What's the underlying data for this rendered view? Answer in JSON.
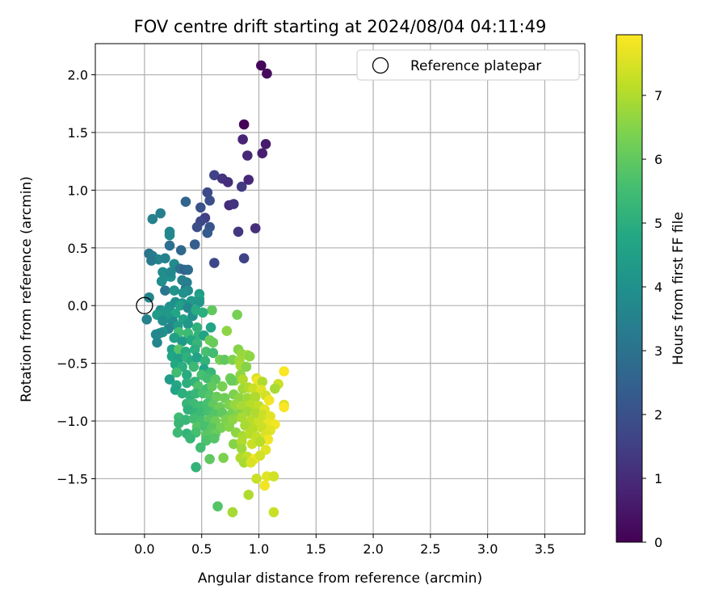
{
  "chart_data": {
    "type": "scatter",
    "title": "FOV centre drift starting at 2024/08/04 04:11:49",
    "xlabel": "Angular distance from reference (arcmin)",
    "ylabel": "Rotation from reference (arcmin)",
    "xlim": [
      -0.43,
      3.85
    ],
    "ylim": [
      -1.98,
      2.27
    ],
    "x_ticks": [
      0.0,
      0.5,
      1.0,
      1.5,
      2.0,
      2.5,
      3.0,
      3.5
    ],
    "x_tick_labels": [
      "0.0",
      "0.5",
      "1.0",
      "1.5",
      "2.0",
      "2.5",
      "3.0",
      "3.5"
    ],
    "y_ticks": [
      -1.5,
      -1.0,
      -0.5,
      0.0,
      0.5,
      1.0,
      1.5,
      2.0
    ],
    "y_tick_labels": [
      "−1.5",
      "−1.0",
      "−0.5",
      "0.0",
      "0.5",
      "1.0",
      "1.5",
      "2.0"
    ],
    "grid": true,
    "legend": {
      "position": "top-right",
      "entries": [
        "Reference platepar"
      ]
    },
    "reference_point": {
      "x": 0.0,
      "y": 0.0
    },
    "colorbar": {
      "label": "Hours from first FF file",
      "colormap": "viridis",
      "range": [
        0,
        7.95
      ],
      "ticks": [
        0,
        1,
        2,
        3,
        4,
        5,
        6,
        7
      ],
      "tick_labels": [
        "0",
        "1",
        "2",
        "3",
        "4",
        "5",
        "6",
        "7"
      ]
    },
    "points": [
      [
        1.02,
        2.08,
        0.15
      ],
      [
        1.07,
        2.01,
        0.25
      ],
      [
        0.87,
        1.57,
        0.05
      ],
      [
        1.06,
        1.4,
        0.6
      ],
      [
        0.86,
        1.44,
        0.8
      ],
      [
        1.03,
        1.32,
        0.7
      ],
      [
        0.9,
        1.3,
        0.9
      ],
      [
        0.61,
        1.13,
        1.6
      ],
      [
        0.68,
        1.1,
        1.2
      ],
      [
        0.73,
        1.07,
        1.1
      ],
      [
        0.91,
        1.09,
        0.9
      ],
      [
        0.85,
        1.03,
        1.4
      ],
      [
        0.55,
        0.98,
        1.8
      ],
      [
        0.57,
        0.91,
        1.9
      ],
      [
        0.36,
        0.9,
        2.6
      ],
      [
        0.49,
        0.85,
        2.0
      ],
      [
        0.74,
        0.87,
        1.0
      ],
      [
        0.78,
        0.88,
        1.2
      ],
      [
        0.53,
        0.76,
        1.5
      ],
      [
        0.49,
        0.73,
        1.7
      ],
      [
        0.57,
        0.68,
        2.1
      ],
      [
        0.46,
        0.68,
        1.9
      ],
      [
        0.55,
        0.63,
        2.3
      ],
      [
        0.82,
        0.64,
        1.3
      ],
      [
        0.97,
        0.67,
        1.1
      ],
      [
        0.14,
        0.8,
        3.4
      ],
      [
        0.07,
        0.75,
        3.5
      ],
      [
        0.22,
        0.64,
        3.6
      ],
      [
        0.22,
        0.61,
        3.7
      ],
      [
        0.22,
        0.52,
        2.9
      ],
      [
        0.32,
        0.48,
        2.7
      ],
      [
        0.44,
        0.53,
        2.4
      ],
      [
        0.87,
        0.41,
        1.6
      ],
      [
        0.61,
        0.37,
        1.7
      ],
      [
        0.04,
        0.45,
        3.0
      ],
      [
        0.07,
        0.43,
        3.3
      ],
      [
        0.12,
        0.4,
        3.6
      ],
      [
        0.18,
        0.41,
        3.5
      ],
      [
        0.06,
        0.39,
        3.2
      ],
      [
        0.26,
        0.36,
        3.8
      ],
      [
        0.31,
        0.32,
        3.0
      ],
      [
        0.35,
        0.31,
        2.5
      ],
      [
        0.38,
        0.31,
        2.8
      ],
      [
        0.16,
        0.29,
        3.8
      ],
      [
        0.18,
        0.25,
        3.9
      ],
      [
        0.23,
        0.25,
        4.0
      ],
      [
        0.23,
        0.29,
        3.7
      ],
      [
        0.15,
        0.21,
        3.9
      ],
      [
        0.33,
        0.22,
        3.5
      ],
      [
        0.37,
        0.2,
        3.4
      ],
      [
        0.36,
        0.15,
        3.2
      ],
      [
        0.38,
        0.13,
        3.8
      ],
      [
        0.18,
        0.13,
        3.1
      ],
      [
        0.26,
        0.13,
        4.1
      ],
      [
        0.34,
        0.11,
        4.0
      ],
      [
        0.04,
        0.07,
        3.6
      ],
      [
        0.48,
        0.1,
        4.4
      ],
      [
        0.48,
        0.06,
        4.6
      ],
      [
        0.41,
        0.04,
        4.3
      ],
      [
        0.48,
        0.03,
        4.2
      ],
      [
        0.33,
        0.02,
        4.1
      ],
      [
        0.27,
        0.03,
        3.9
      ],
      [
        0.31,
        0.0,
        4.5
      ],
      [
        0.22,
        -0.01,
        4.0
      ],
      [
        0.38,
        -0.02,
        3.7
      ],
      [
        0.14,
        -0.04,
        3.8
      ],
      [
        0.16,
        -0.05,
        4.1
      ],
      [
        0.19,
        -0.06,
        4.2
      ],
      [
        0.11,
        -0.08,
        4.4
      ],
      [
        0.27,
        -0.07,
        4.7
      ],
      [
        0.42,
        -0.09,
        4.0
      ],
      [
        0.59,
        -0.04,
        6.0
      ],
      [
        0.45,
        -0.04,
        4.9
      ],
      [
        0.51,
        -0.06,
        5.0
      ],
      [
        0.21,
        -0.11,
        4.3
      ],
      [
        0.16,
        -0.13,
        3.9
      ],
      [
        0.34,
        -0.12,
        4.6
      ],
      [
        0.02,
        -0.12,
        3.5
      ],
      [
        0.25,
        -0.14,
        3.8
      ],
      [
        0.38,
        -0.16,
        4.2
      ],
      [
        0.29,
        -0.18,
        4.4
      ],
      [
        0.21,
        -0.2,
        3.6
      ],
      [
        0.46,
        -0.19,
        5.1
      ],
      [
        0.58,
        -0.19,
        4.7
      ],
      [
        0.16,
        -0.23,
        4.0
      ],
      [
        0.13,
        -0.24,
        3.8
      ],
      [
        0.1,
        -0.25,
        3.7
      ],
      [
        0.3,
        -0.23,
        5.5
      ],
      [
        0.38,
        -0.24,
        5.4
      ],
      [
        0.47,
        -0.26,
        5.2
      ],
      [
        0.52,
        -0.26,
        4.6
      ],
      [
        0.57,
        -0.3,
        6.2
      ],
      [
        0.81,
        -0.08,
        6.3
      ],
      [
        0.72,
        -0.22,
        6.6
      ],
      [
        0.11,
        -0.32,
        3.6
      ],
      [
        0.26,
        -0.28,
        4.5
      ],
      [
        0.33,
        -0.31,
        4.3
      ],
      [
        0.41,
        -0.3,
        4.8
      ],
      [
        0.46,
        -0.33,
        5.3
      ],
      [
        0.6,
        -0.32,
        6.1
      ],
      [
        0.24,
        -0.38,
        4.6
      ],
      [
        0.3,
        -0.38,
        5.8
      ],
      [
        0.36,
        -0.4,
        4.9
      ],
      [
        0.44,
        -0.38,
        5.0
      ],
      [
        0.54,
        -0.4,
        5.6
      ],
      [
        0.6,
        -0.41,
        5.5
      ],
      [
        0.82,
        -0.38,
        6.5
      ],
      [
        0.85,
        -0.42,
        6.7
      ],
      [
        0.9,
        -0.43,
        6.8
      ],
      [
        0.24,
        -0.44,
        4.7
      ],
      [
        0.3,
        -0.46,
        4.5
      ],
      [
        0.37,
        -0.45,
        5.1
      ],
      [
        0.41,
        -0.48,
        4.9
      ],
      [
        0.46,
        -0.45,
        4.6
      ],
      [
        0.53,
        -0.48,
        5.2
      ],
      [
        0.66,
        -0.47,
        6.3
      ],
      [
        0.7,
        -0.47,
        6.0
      ],
      [
        0.77,
        -0.47,
        6.4
      ],
      [
        0.83,
        -0.48,
        6.8
      ],
      [
        0.92,
        -0.44,
        6.6
      ],
      [
        0.84,
        -0.52,
        6.9
      ],
      [
        0.89,
        -0.53,
        6.5
      ],
      [
        0.27,
        -0.51,
        4.8
      ],
      [
        0.33,
        -0.53,
        5.0
      ],
      [
        0.43,
        -0.53,
        5.4
      ],
      [
        0.52,
        -0.55,
        4.7
      ],
      [
        0.58,
        -0.58,
        5.3
      ],
      [
        0.28,
        -0.58,
        5.5
      ],
      [
        0.37,
        -0.6,
        4.9
      ],
      [
        0.5,
        -0.6,
        5.6
      ],
      [
        0.55,
        -0.63,
        5.5
      ],
      [
        0.62,
        -0.64,
        5.9
      ],
      [
        0.75,
        -0.63,
        6.3
      ],
      [
        0.79,
        -0.65,
        6.5
      ],
      [
        0.84,
        -0.6,
        6.6
      ],
      [
        0.86,
        -0.64,
        7.0
      ],
      [
        0.98,
        -0.63,
        7.5
      ],
      [
        0.99,
        -0.65,
        7.8
      ],
      [
        1.03,
        -0.66,
        7.0
      ],
      [
        1.22,
        -0.57,
        7.9
      ],
      [
        1.17,
        -0.68,
        7.3
      ],
      [
        1.14,
        -0.72,
        6.9
      ],
      [
        0.22,
        -0.64,
        4.4
      ],
      [
        0.28,
        -0.69,
        4.8
      ],
      [
        0.37,
        -0.67,
        5.0
      ],
      [
        0.44,
        -0.66,
        5.2
      ],
      [
        0.47,
        -0.7,
        5.7
      ],
      [
        0.55,
        -0.72,
        5.5
      ],
      [
        0.59,
        -0.7,
        6.0
      ],
      [
        0.68,
        -0.7,
        6.3
      ],
      [
        0.76,
        -0.65,
        6.1
      ],
      [
        0.86,
        -0.72,
        6.8
      ],
      [
        0.91,
        -0.71,
        7.0
      ],
      [
        0.95,
        -0.72,
        7.3
      ],
      [
        1.02,
        -0.73,
        7.6
      ],
      [
        0.27,
        -0.73,
        4.6
      ],
      [
        0.33,
        -0.76,
        5.0
      ],
      [
        0.4,
        -0.78,
        5.1
      ],
      [
        0.45,
        -0.76,
        5.3
      ],
      [
        0.51,
        -0.76,
        5.6
      ],
      [
        0.57,
        -0.78,
        5.8
      ],
      [
        0.63,
        -0.79,
        6.1
      ],
      [
        0.7,
        -0.8,
        6.2
      ],
      [
        0.78,
        -0.77,
        6.4
      ],
      [
        0.83,
        -0.8,
        6.6
      ],
      [
        0.9,
        -0.8,
        6.8
      ],
      [
        0.97,
        -0.79,
        7.0
      ],
      [
        1.06,
        -0.78,
        7.4
      ],
      [
        1.09,
        -0.82,
        7.8
      ],
      [
        0.37,
        -0.85,
        5.3
      ],
      [
        0.43,
        -0.85,
        5.4
      ],
      [
        0.49,
        -0.87,
        5.5
      ],
      [
        0.55,
        -0.85,
        5.6
      ],
      [
        0.6,
        -0.86,
        6.0
      ],
      [
        0.66,
        -0.88,
        6.2
      ],
      [
        0.74,
        -0.86,
        6.4
      ],
      [
        0.79,
        -0.86,
        6.7
      ],
      [
        0.85,
        -0.87,
        6.9
      ],
      [
        0.93,
        -0.86,
        7.1
      ],
      [
        1.0,
        -0.87,
        7.2
      ],
      [
        1.05,
        -0.9,
        7.6
      ],
      [
        1.22,
        -0.86,
        7.5
      ],
      [
        1.22,
        -0.88,
        7.9
      ],
      [
        0.38,
        -0.9,
        5.1
      ],
      [
        0.44,
        -0.93,
        5.2
      ],
      [
        0.49,
        -0.93,
        5.4
      ],
      [
        0.56,
        -0.92,
        5.6
      ],
      [
        0.61,
        -0.94,
        5.8
      ],
      [
        0.68,
        -0.93,
        6.0
      ],
      [
        0.76,
        -0.94,
        6.3
      ],
      [
        0.82,
        -0.94,
        6.5
      ],
      [
        0.9,
        -0.92,
        6.8
      ],
      [
        0.97,
        -0.93,
        7.0
      ],
      [
        1.04,
        -0.95,
        7.3
      ],
      [
        1.1,
        -0.96,
        7.6
      ],
      [
        0.3,
        -0.97,
        5.5
      ],
      [
        0.36,
        -0.99,
        5.3
      ],
      [
        0.43,
        -0.98,
        5.5
      ],
      [
        0.5,
        -1.0,
        5.6
      ],
      [
        0.56,
        -0.99,
        5.9
      ],
      [
        0.62,
        -1.0,
        6.2
      ],
      [
        0.71,
        -0.99,
        6.4
      ],
      [
        0.77,
        -0.99,
        6.6
      ],
      [
        0.85,
        -0.97,
        6.9
      ],
      [
        0.93,
        -1.0,
        7.1
      ],
      [
        1.0,
        -1.01,
        7.3
      ],
      [
        1.08,
        -1.02,
        7.7
      ],
      [
        1.14,
        -1.03,
        7.8
      ],
      [
        0.3,
        -1.02,
        5.3
      ],
      [
        0.46,
        -1.05,
        5.8
      ],
      [
        0.53,
        -1.05,
        5.6
      ],
      [
        0.59,
        -1.06,
        5.9
      ],
      [
        0.67,
        -1.06,
        6.3
      ],
      [
        0.74,
        -1.05,
        6.5
      ],
      [
        0.88,
        -1.04,
        6.9
      ],
      [
        0.95,
        -1.07,
        7.1
      ],
      [
        1.03,
        -1.06,
        7.3
      ],
      [
        1.1,
        -1.08,
        7.6
      ],
      [
        0.29,
        -1.1,
        5.4
      ],
      [
        0.37,
        -1.11,
        5.2
      ],
      [
        0.45,
        -1.1,
        5.6
      ],
      [
        0.54,
        -1.12,
        5.9
      ],
      [
        0.62,
        -1.11,
        6.1
      ],
      [
        0.8,
        -1.1,
        6.6
      ],
      [
        0.86,
        -1.13,
        6.9
      ],
      [
        0.92,
        -1.11,
        7.1
      ],
      [
        0.98,
        -1.14,
        7.2
      ],
      [
        1.06,
        -1.12,
        7.5
      ],
      [
        1.08,
        -1.16,
        7.8
      ],
      [
        0.4,
        -1.15,
        5.3
      ],
      [
        0.54,
        -1.17,
        5.7
      ],
      [
        0.61,
        -1.15,
        5.8
      ],
      [
        0.78,
        -1.2,
        6.5
      ],
      [
        0.85,
        -1.18,
        7.0
      ],
      [
        0.94,
        -1.2,
        7.3
      ],
      [
        1.01,
        -1.18,
        7.1
      ],
      [
        0.49,
        -1.23,
        5.5
      ],
      [
        0.85,
        -1.24,
        6.8
      ],
      [
        1.06,
        -1.25,
        7.6
      ],
      [
        0.57,
        -1.33,
        6.0
      ],
      [
        0.69,
        -1.32,
        6.4
      ],
      [
        0.84,
        -1.32,
        7.0
      ],
      [
        0.9,
        -1.31,
        7.2
      ],
      [
        0.96,
        -1.33,
        7.8
      ],
      [
        1.01,
        -1.3,
        7.4
      ],
      [
        0.87,
        -1.36,
        6.9
      ],
      [
        0.93,
        -1.36,
        7.5
      ],
      [
        0.45,
        -1.4,
        5.2
      ],
      [
        0.98,
        -1.5,
        7.3
      ],
      [
        1.07,
        -1.48,
        7.6
      ],
      [
        1.13,
        -1.48,
        7.4
      ],
      [
        1.05,
        -1.56,
        7.8
      ],
      [
        0.91,
        -1.64,
        7.0
      ],
      [
        0.64,
        -1.74,
        5.8
      ],
      [
        0.77,
        -1.79,
        6.9
      ],
      [
        1.13,
        -1.79,
        7.3
      ]
    ]
  }
}
